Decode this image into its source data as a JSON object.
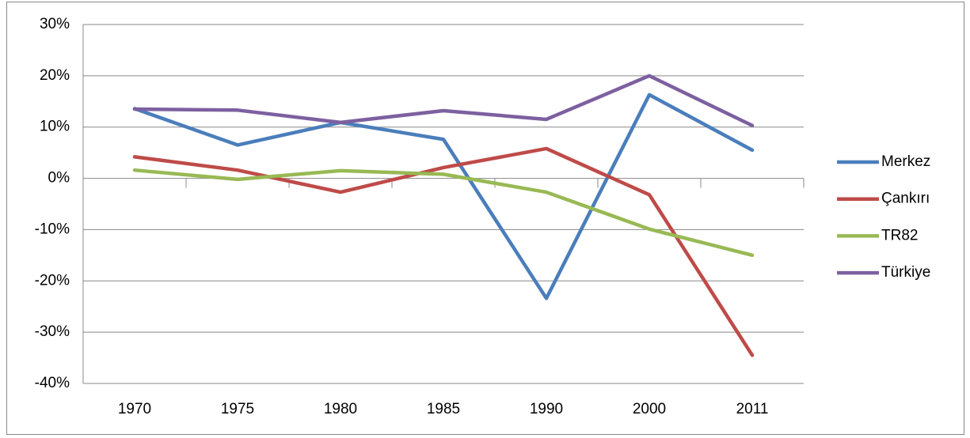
{
  "chart_data": {
    "type": "line",
    "categories": [
      "1970",
      "1975",
      "1980",
      "1985",
      "1990",
      "2000",
      "2011"
    ],
    "series": [
      {
        "name": "Merkez",
        "color": "#4a7ebb",
        "values": [
          13.6,
          6.5,
          10.9,
          7.6,
          -23.4,
          16.3,
          5.5
        ]
      },
      {
        "name": "Çankırı",
        "color": "#be4b48",
        "values": [
          4.2,
          1.6,
          -2.7,
          2.1,
          5.8,
          -3.2,
          -34.5
        ]
      },
      {
        "name": "TR82",
        "color": "#98b954",
        "values": [
          1.6,
          -0.2,
          1.5,
          0.8,
          -2.7,
          -9.9,
          -15.0
        ]
      },
      {
        "name": "Türkiye",
        "color": "#7d60a0",
        "values": [
          13.5,
          13.3,
          10.9,
          13.2,
          11.5,
          20.0,
          10.3
        ]
      }
    ],
    "ylim": [
      -40,
      30
    ],
    "yticks": [
      {
        "value": -40,
        "label": "-40%"
      },
      {
        "value": -30,
        "label": "-30%"
      },
      {
        "value": -20,
        "label": "-20%"
      },
      {
        "value": -10,
        "label": "-10%"
      },
      {
        "value": 0,
        "label": "0%"
      },
      {
        "value": 10,
        "label": "10%"
      },
      {
        "value": 20,
        "label": "20%"
      },
      {
        "value": 30,
        "label": "30%"
      }
    ],
    "grid": true,
    "legend": "right"
  }
}
